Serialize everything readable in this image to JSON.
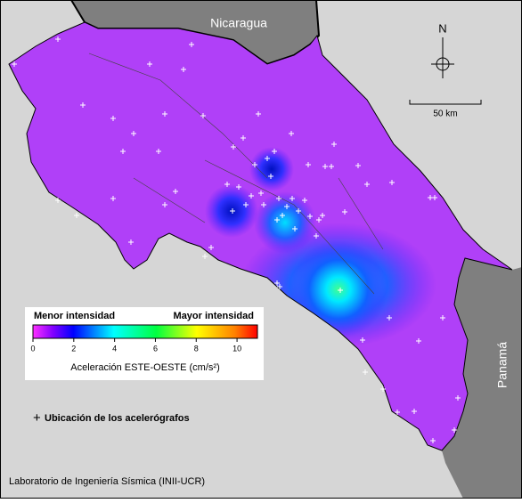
{
  "map": {
    "labels": {
      "nicaragua": "Nicaragua",
      "panama": "Panamá",
      "north": "N",
      "scale": "50 km"
    },
    "colorbar": {
      "min_label": "Menor intensidad",
      "max_label": "Mayor intensidad",
      "title": "Aceleración ESTE-OESTE (cm/s²)",
      "lim": [
        0,
        11
      ],
      "ticks": [
        0,
        2,
        4,
        6,
        8,
        10
      ]
    },
    "legend": "Ubicación de los acelerógrafos",
    "credit": "Laboratorio de Ingeniería Sísmica (INII-UCR)"
  }
}
